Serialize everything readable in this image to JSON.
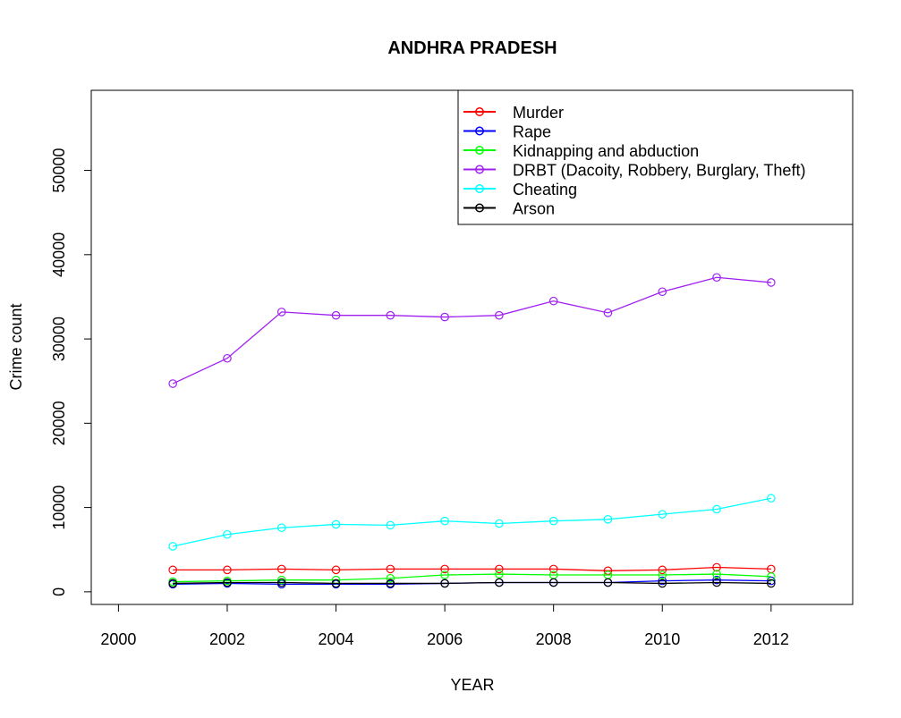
{
  "chart_data": {
    "type": "line",
    "title": "ANDHRA PRADESH",
    "xlabel": "YEAR",
    "ylabel": "Crime count",
    "xlim": [
      1999.5,
      2013.5
    ],
    "ylim": [
      -1500,
      59500
    ],
    "x_ticks": [
      2000,
      2002,
      2004,
      2006,
      2008,
      2010,
      2012
    ],
    "y_ticks": [
      0,
      10000,
      20000,
      30000,
      40000,
      50000
    ],
    "legend_position": "top-right",
    "grid": false,
    "x": [
      2001,
      2002,
      2003,
      2004,
      2005,
      2006,
      2007,
      2008,
      2009,
      2010,
      2011,
      2012
    ],
    "series": [
      {
        "name": "Murder",
        "color": "#ff0000",
        "values": [
          2600,
          2600,
          2700,
          2600,
          2700,
          2700,
          2700,
          2700,
          2500,
          2600,
          2900,
          2700
        ]
      },
      {
        "name": "Rape",
        "color": "#0000ff",
        "values": [
          900,
          1000,
          900,
          900,
          900,
          1000,
          1100,
          1100,
          1100,
          1300,
          1400,
          1300
        ]
      },
      {
        "name": "Kidnapping and abduction",
        "color": "#00ff00",
        "values": [
          1200,
          1300,
          1400,
          1400,
          1600,
          2000,
          2100,
          2000,
          2000,
          2000,
          2100,
          1800
        ]
      },
      {
        "name": "DRBT (Dacoity, Robbery, Burglary, Theft)",
        "color": "#a020f0",
        "values": [
          24700,
          27700,
          33200,
          32800,
          32800,
          32600,
          32800,
          34500,
          33100,
          35600,
          37300,
          36700
        ]
      },
      {
        "name": "Cheating",
        "color": "#00ffff",
        "values": [
          5400,
          6800,
          7600,
          8000,
          7900,
          8400,
          8100,
          8400,
          8600,
          9200,
          9800,
          11100
        ]
      },
      {
        "name": "Arson",
        "color": "#000000",
        "values": [
          1000,
          1100,
          1100,
          1000,
          1000,
          1000,
          1100,
          1100,
          1100,
          1000,
          1100,
          1000
        ]
      }
    ]
  }
}
